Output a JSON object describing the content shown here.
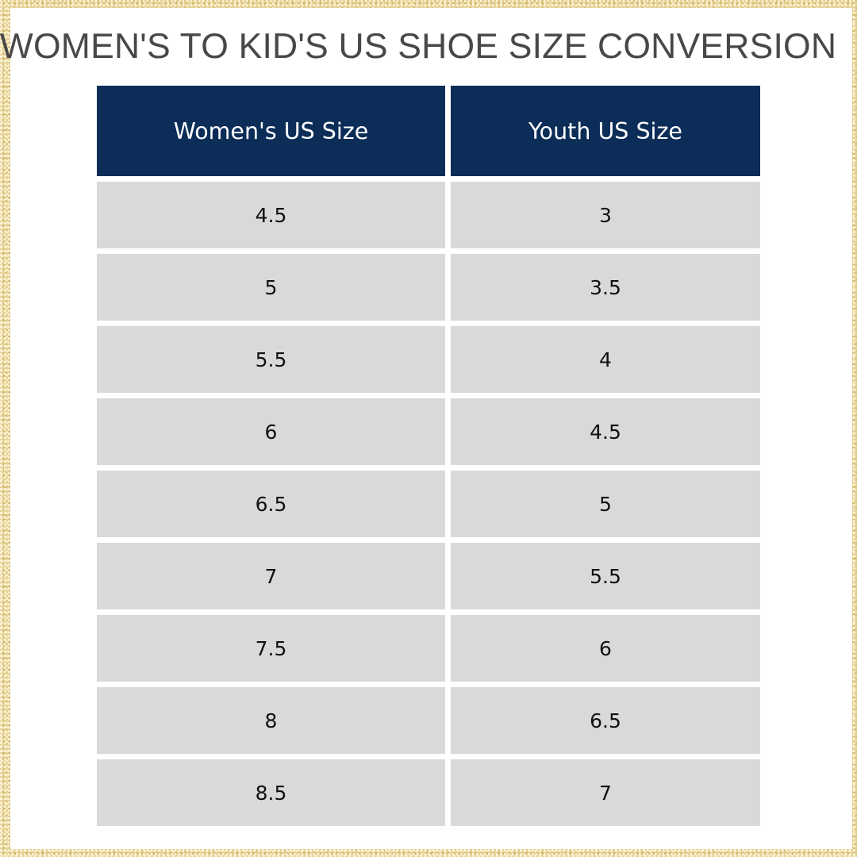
{
  "title": "WOMEN'S TO KID'S US SHOE SIZE CONVERSION",
  "colors": {
    "header_bg": "#0b2d58",
    "cell_bg": "#d9d9d9",
    "frame": "#e6d39a",
    "title_text": "#484848"
  },
  "table": {
    "headers": [
      "Women's US Size",
      "Youth US Size"
    ],
    "rows": [
      [
        "4.5",
        "3"
      ],
      [
        "5",
        "3.5"
      ],
      [
        "5.5",
        "4"
      ],
      [
        "6",
        "4.5"
      ],
      [
        "6.5",
        "5"
      ],
      [
        "7",
        "5.5"
      ],
      [
        "7.5",
        "6"
      ],
      [
        "8",
        "6.5"
      ],
      [
        "8.5",
        "7"
      ]
    ]
  }
}
